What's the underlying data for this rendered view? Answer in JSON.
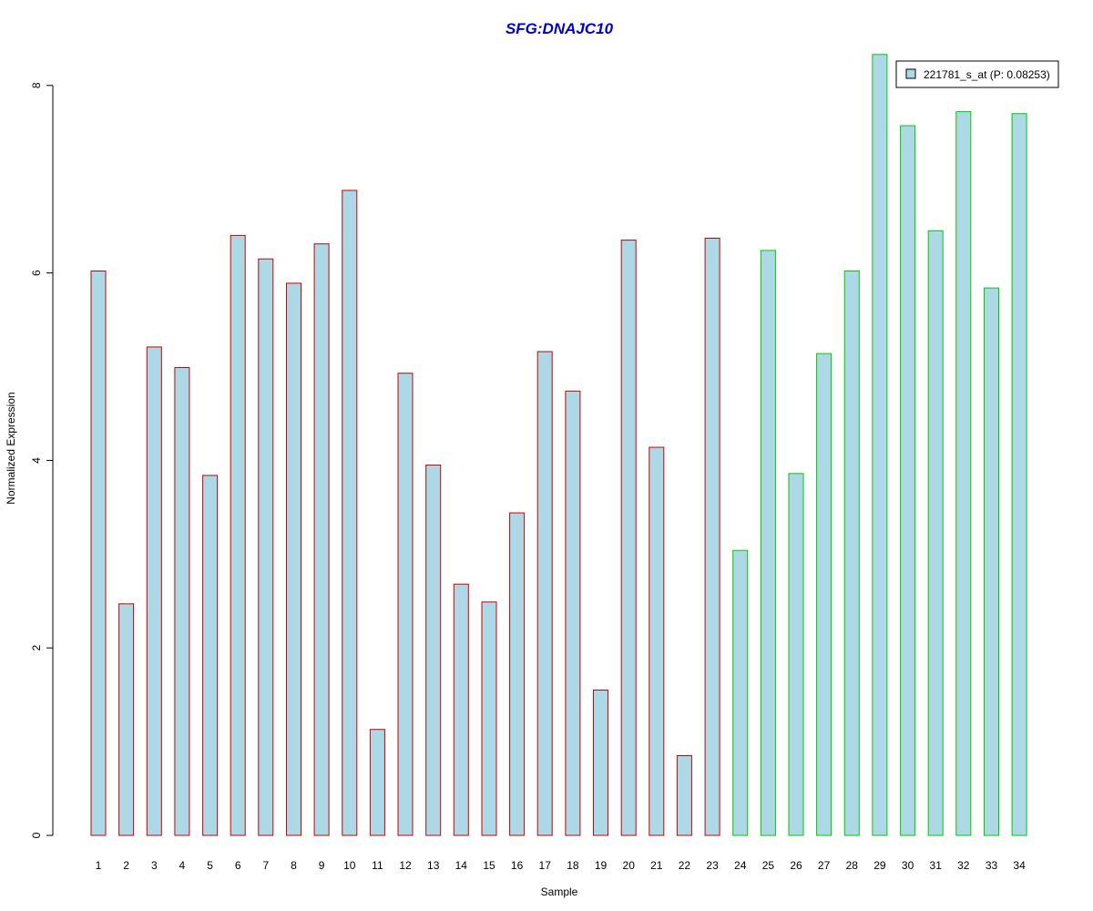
{
  "chart_data": {
    "type": "bar",
    "title": "SFG:DNAJC10",
    "xlabel": "Sample",
    "ylabel": "Normalized Expression",
    "ylim": [
      0,
      8.4
    ],
    "yticks": [
      0,
      2,
      4,
      6,
      8
    ],
    "categories": [
      "1",
      "2",
      "3",
      "4",
      "5",
      "6",
      "7",
      "8",
      "9",
      "10",
      "11",
      "12",
      "13",
      "14",
      "15",
      "16",
      "17",
      "18",
      "19",
      "20",
      "21",
      "22",
      "23",
      "24",
      "25",
      "26",
      "27",
      "28",
      "29",
      "30",
      "31",
      "32",
      "33",
      "34"
    ],
    "series": [
      {
        "name": "221781_s_at (P: 0.08253)",
        "values": [
          6.02,
          2.47,
          5.21,
          4.99,
          3.84,
          6.4,
          6.15,
          5.89,
          6.31,
          6.88,
          1.13,
          4.93,
          3.95,
          2.68,
          2.49,
          3.44,
          5.16,
          4.74,
          1.55,
          6.35,
          4.14,
          0.85,
          6.37,
          3.04,
          6.24,
          3.86,
          5.14,
          6.02,
          8.33,
          7.57,
          6.45,
          7.72,
          5.84,
          7.7
        ]
      }
    ],
    "groups": {
      "border_colors": [
        "#cc0000",
        "#00cc00"
      ],
      "group_of_each_sample": [
        0,
        0,
        0,
        0,
        0,
        0,
        0,
        0,
        0,
        0,
        0,
        0,
        0,
        0,
        0,
        0,
        0,
        0,
        0,
        0,
        0,
        0,
        0,
        1,
        1,
        1,
        1,
        1,
        1,
        1,
        1,
        1,
        1,
        1
      ]
    },
    "bar_fill": "#add8e6",
    "title_color": "#0000cc",
    "legend_position": "top-right",
    "grid": false
  }
}
